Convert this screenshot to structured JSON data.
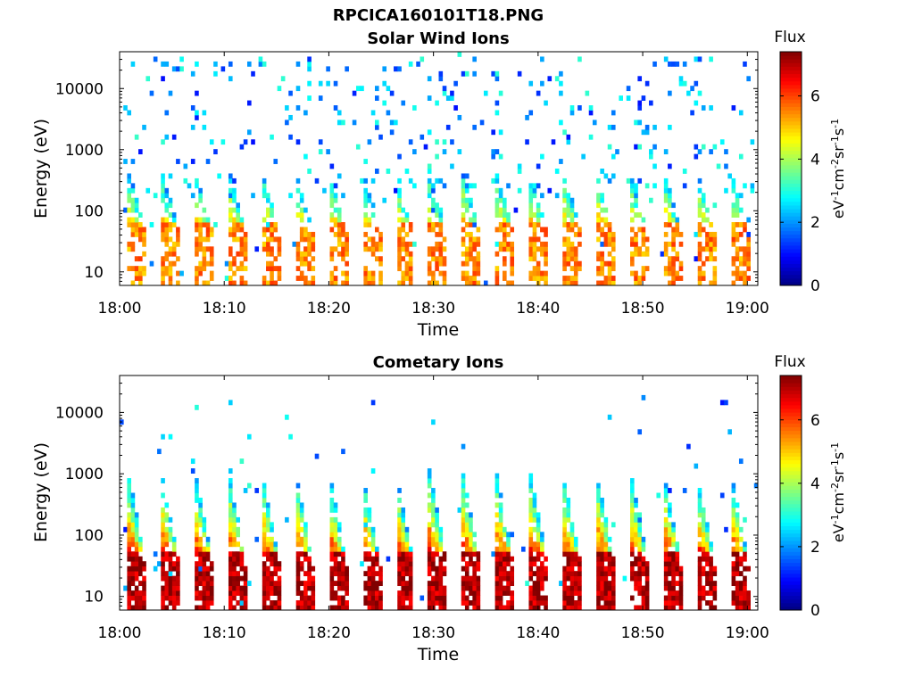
{
  "figure": {
    "filename": "RPCICA160101T18.PNG"
  },
  "chart_data": [
    {
      "type": "heatmap",
      "title": "Solar Wind Ions",
      "xlabel": "Time",
      "ylabel": "Energy (eV)",
      "x_range": [
        "18:00",
        "19:01"
      ],
      "xticks": [
        "18:00",
        "18:10",
        "18:20",
        "18:30",
        "18:40",
        "18:50",
        "19:00"
      ],
      "y_scale": "log",
      "ylim": [
        6,
        40000
      ],
      "yticks": [
        10,
        100,
        1000,
        10000
      ],
      "ytick_labels": [
        "10",
        "100",
        "1000",
        "10000"
      ],
      "colorbar": {
        "title": "Flux",
        "label": "eV-1cm-2sr-1s-1",
        "range": [
          0,
          7.4
        ],
        "ticks": [
          "0",
          "2",
          "4",
          "6"
        ],
        "colormap": "jet"
      },
      "sweep_period_min": 3.2,
      "typical_peak_energy_eV": 40,
      "typical_peak_log_flux": 5.5,
      "background": "sparse noise 1 to 3 up to 30000 eV"
    },
    {
      "type": "heatmap",
      "title": "Cometary Ions",
      "xlabel": "Time",
      "ylabel": "Energy (eV)",
      "x_range": [
        "18:00",
        "19:01"
      ],
      "xticks": [
        "18:00",
        "18:10",
        "18:20",
        "18:30",
        "18:40",
        "18:50",
        "19:00"
      ],
      "y_scale": "log",
      "ylim": [
        6,
        40000
      ],
      "yticks": [
        10,
        100,
        1000,
        10000
      ],
      "ytick_labels": [
        "10",
        "100",
        "1000",
        "10000"
      ],
      "colorbar": {
        "title": "Flux",
        "label": "eV-1cm-2sr-1s-1",
        "range": [
          0,
          7.4
        ],
        "ticks": [
          "0",
          "2",
          "4",
          "6"
        ],
        "colormap": "jet"
      },
      "sweep_period_min": 3.2,
      "typical_peak_energy_eV": 30,
      "typical_peak_log_flux": 7,
      "background": "sparse noise 1 to 3 up to 15000 eV"
    }
  ]
}
